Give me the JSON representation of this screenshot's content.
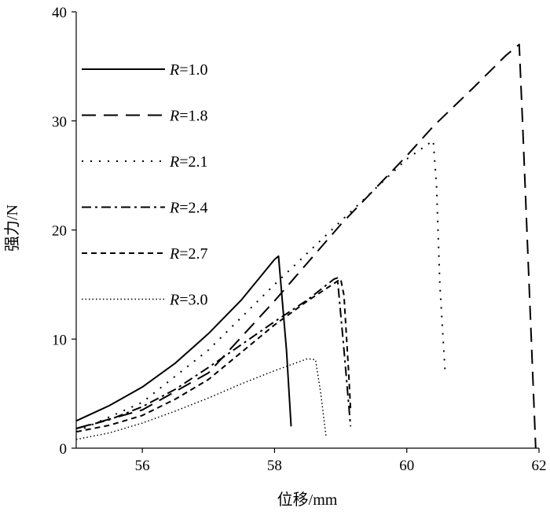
{
  "chart_data": {
    "type": "line",
    "xlabel": "位移/mm",
    "ylabel": "强力/N",
    "xlim": [
      55,
      62
    ],
    "ylim": [
      0,
      40
    ],
    "x_ticks": [
      56,
      58,
      60,
      62
    ],
    "y_ticks": [
      0,
      10,
      20,
      30,
      40
    ],
    "grid": false,
    "legend_position": "left",
    "series": [
      {
        "name": "R=1.0",
        "line_style": "solid",
        "points": [
          [
            55.0,
            2.5
          ],
          [
            55.5,
            3.9
          ],
          [
            56.0,
            5.6
          ],
          [
            56.5,
            7.8
          ],
          [
            57.0,
            10.5
          ],
          [
            57.5,
            13.6
          ],
          [
            58.0,
            17.3
          ],
          [
            58.06,
            17.6
          ],
          [
            58.18,
            9.0
          ],
          [
            58.25,
            2.0
          ]
        ]
      },
      {
        "name": "R=1.8",
        "line_style": "long-dash",
        "points": [
          [
            55.0,
            1.8
          ],
          [
            56.0,
            3.5
          ],
          [
            57.0,
            6.9
          ],
          [
            58.0,
            13.5
          ],
          [
            59.0,
            20.5
          ],
          [
            60.0,
            26.8
          ],
          [
            60.4,
            29.5
          ],
          [
            61.0,
            33.0
          ],
          [
            61.5,
            36.0
          ],
          [
            61.7,
            37.0
          ],
          [
            61.75,
            30.0
          ],
          [
            61.85,
            15.0
          ],
          [
            61.95,
            0.0
          ]
        ]
      },
      {
        "name": "R=2.1",
        "line_style": "dotted",
        "points": [
          [
            55.0,
            1.5
          ],
          [
            56.0,
            4.2
          ],
          [
            57.0,
            9.0
          ],
          [
            58.0,
            15.0
          ],
          [
            59.0,
            20.8
          ],
          [
            60.0,
            26.5
          ],
          [
            60.4,
            28.2
          ],
          [
            60.45,
            24.0
          ],
          [
            60.5,
            15.0
          ],
          [
            60.58,
            7.0
          ]
        ]
      },
      {
        "name": "R=2.4",
        "line_style": "dash-dot",
        "points": [
          [
            55.0,
            1.8
          ],
          [
            55.5,
            2.6
          ],
          [
            56.0,
            3.8
          ],
          [
            56.5,
            5.4
          ],
          [
            57.0,
            7.4
          ],
          [
            57.5,
            9.5
          ],
          [
            58.0,
            11.6
          ],
          [
            58.5,
            13.6
          ],
          [
            58.9,
            15.5
          ],
          [
            58.95,
            15.6
          ],
          [
            59.05,
            9.0
          ],
          [
            59.15,
            2.0
          ]
        ]
      },
      {
        "name": "R=2.7",
        "line_style": "short-dash",
        "points": [
          [
            55.0,
            1.5
          ],
          [
            55.5,
            2.1
          ],
          [
            56.0,
            3.0
          ],
          [
            56.5,
            4.5
          ],
          [
            57.0,
            6.3
          ],
          [
            57.5,
            8.8
          ],
          [
            58.0,
            11.3
          ],
          [
            58.5,
            13.5
          ],
          [
            59.0,
            15.5
          ],
          [
            59.05,
            14.0
          ],
          [
            59.12,
            7.0
          ],
          [
            59.15,
            3.5
          ]
        ]
      },
      {
        "name": "R=3.0",
        "line_style": "fine-dotted",
        "points": [
          [
            55.0,
            0.8
          ],
          [
            55.5,
            1.4
          ],
          [
            56.0,
            2.3
          ],
          [
            56.5,
            3.4
          ],
          [
            57.0,
            4.6
          ],
          [
            57.5,
            5.9
          ],
          [
            58.0,
            7.1
          ],
          [
            58.5,
            8.2
          ],
          [
            58.62,
            8.1
          ],
          [
            58.7,
            5.0
          ],
          [
            58.78,
            1.0
          ]
        ]
      }
    ]
  }
}
